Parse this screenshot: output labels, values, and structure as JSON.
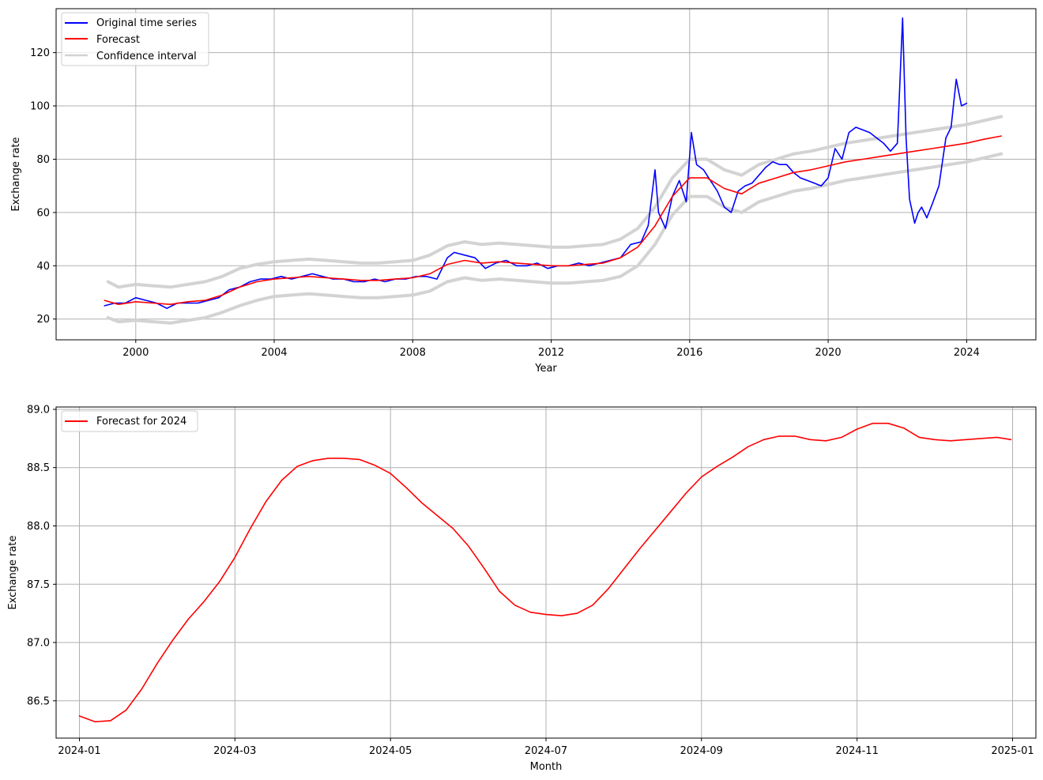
{
  "chart_data": [
    {
      "type": "line",
      "title": "",
      "xlabel": "Year",
      "ylabel": "Exchange rate",
      "xlim": [
        1997.7,
        2026.0
      ],
      "ylim": [
        12.2,
        136.5
      ],
      "x_ticks": [
        2000,
        2004,
        2008,
        2012,
        2016,
        2020,
        2024
      ],
      "x_tick_labels": [
        "2000",
        "2004",
        "2008",
        "2012",
        "2016",
        "2020",
        "2024"
      ],
      "y_ticks": [
        20,
        40,
        60,
        80,
        100,
        120
      ],
      "y_tick_labels": [
        "20",
        "40",
        "60",
        "80",
        "100",
        "120"
      ],
      "grid": true,
      "legend_position": "top-left",
      "series": [
        {
          "name": "Original time series",
          "color": "#0000ff",
          "x": [
            1999.1,
            1999.4,
            1999.7,
            2000.0,
            2000.3,
            2000.6,
            2000.9,
            2001.2,
            2001.5,
            2001.8,
            2002.1,
            2002.4,
            2002.7,
            2003.0,
            2003.3,
            2003.6,
            2003.9,
            2004.2,
            2004.5,
            2004.8,
            2005.1,
            2005.4,
            2005.7,
            2006.0,
            2006.3,
            2006.6,
            2006.9,
            2007.2,
            2007.5,
            2007.8,
            2008.1,
            2008.4,
            2008.7,
            2009.0,
            2009.2,
            2009.5,
            2009.8,
            2010.1,
            2010.4,
            2010.7,
            2011.0,
            2011.3,
            2011.6,
            2011.9,
            2012.2,
            2012.5,
            2012.8,
            2013.1,
            2013.4,
            2013.7,
            2014.0,
            2014.3,
            2014.6,
            2014.8,
            2015.0,
            2015.1,
            2015.3,
            2015.5,
            2015.7,
            2015.9,
            2016.05,
            2016.2,
            2016.4,
            2016.6,
            2016.8,
            2017.0,
            2017.2,
            2017.4,
            2017.6,
            2017.8,
            2018.0,
            2018.2,
            2018.4,
            2018.6,
            2018.8,
            2019.0,
            2019.2,
            2019.4,
            2019.6,
            2019.8,
            2020.0,
            2020.2,
            2020.4,
            2020.6,
            2020.8,
            2021.0,
            2021.2,
            2021.4,
            2021.6,
            2021.8,
            2022.0,
            2022.15,
            2022.25,
            2022.35,
            2022.5,
            2022.6,
            2022.7,
            2022.85,
            2023.0,
            2023.2,
            2023.4,
            2023.55,
            2023.7,
            2023.85,
            2024.0
          ],
          "values": [
            25,
            26,
            26,
            28,
            27,
            26,
            24,
            26,
            26,
            26,
            27,
            28,
            31,
            32,
            34,
            35,
            35,
            36,
            35,
            36,
            37,
            36,
            35,
            35,
            34,
            34,
            35,
            34,
            35,
            35,
            36,
            36,
            35,
            43,
            45,
            44,
            43,
            39,
            41,
            42,
            40,
            40,
            41,
            39,
            40,
            40,
            41,
            40,
            41,
            42,
            43,
            48,
            49,
            55,
            76,
            60,
            54,
            66,
            72,
            64,
            90,
            78,
            76,
            72,
            68,
            62,
            60,
            68,
            70,
            71,
            74,
            77,
            79,
            78,
            78,
            75,
            73,
            72,
            71,
            70,
            73,
            84,
            80,
            90,
            92,
            91,
            90,
            88,
            86,
            83,
            86,
            133,
            88,
            65,
            56,
            60,
            62,
            58,
            63,
            70,
            88,
            92,
            110,
            100,
            101
          ]
        },
        {
          "name": "Forecast",
          "color": "#ff0000",
          "x": [
            1999.1,
            1999.5,
            2000.0,
            2000.5,
            2001.0,
            2001.5,
            2002.0,
            2002.5,
            2003.0,
            2003.5,
            2004.0,
            2004.5,
            2005.0,
            2005.5,
            2006.0,
            2006.5,
            2007.0,
            2007.5,
            2008.0,
            2008.5,
            2009.0,
            2009.5,
            2010.0,
            2010.5,
            2011.0,
            2011.5,
            2012.0,
            2012.5,
            2013.0,
            2013.5,
            2014.0,
            2014.5,
            2015.0,
            2015.5,
            2016.0,
            2016.5,
            2017.0,
            2017.5,
            2018.0,
            2018.5,
            2019.0,
            2019.5,
            2020.0,
            2020.5,
            2021.0,
            2021.5,
            2022.0,
            2022.5,
            2023.0,
            2023.5,
            2024.0,
            2024.5,
            2025.0
          ],
          "values": [
            27,
            25.5,
            26.5,
            26,
            25.5,
            26.5,
            27,
            29,
            32,
            34,
            35,
            35.5,
            36,
            35.5,
            35,
            34.5,
            34.5,
            35,
            35.5,
            37,
            40.5,
            42,
            41,
            41.5,
            41,
            40.5,
            40,
            40,
            40.5,
            41,
            43,
            47,
            55,
            66,
            73,
            73,
            69,
            67,
            71,
            73,
            75,
            76,
            77.5,
            79,
            80,
            81,
            82,
            83,
            84,
            85,
            86,
            87.5,
            88.7
          ]
        },
        {
          "name": "Confidence interval",
          "color": "#d3d3d3",
          "x": [
            1999.2,
            1999.5,
            2000.0,
            2000.5,
            2001.0,
            2001.5,
            2002.0,
            2002.5,
            2003.0,
            2003.5,
            2004.0,
            2004.5,
            2005.0,
            2005.5,
            2006.0,
            2006.5,
            2007.0,
            2007.5,
            2008.0,
            2008.5,
            2009.0,
            2009.5,
            2010.0,
            2010.5,
            2011.0,
            2011.5,
            2012.0,
            2012.5,
            2013.0,
            2013.5,
            2014.0,
            2014.5,
            2015.0,
            2015.5,
            2016.0,
            2016.5,
            2017.0,
            2017.5,
            2018.0,
            2018.5,
            2019.0,
            2019.5,
            2020.0,
            2020.5,
            2021.0,
            2021.5,
            2022.0,
            2022.5,
            2023.0,
            2023.5,
            2024.0,
            2024.5,
            2025.0
          ],
          "values": [
            34,
            32,
            33,
            32.5,
            32,
            33,
            34,
            36,
            39,
            40.5,
            41.5,
            42,
            42.5,
            42,
            41.5,
            41,
            41,
            41.5,
            42,
            44,
            47.5,
            49,
            48,
            48.5,
            48,
            47.5,
            47,
            47,
            47.5,
            48,
            50,
            54,
            62,
            73,
            80,
            80,
            76,
            74,
            78,
            80,
            82,
            83,
            84.5,
            86,
            87,
            88,
            89,
            90,
            91,
            92,
            93,
            94.5,
            96
          ]
        },
        {
          "name": "",
          "color": "#d3d3d3",
          "x": [
            1999.2,
            1999.5,
            2000.0,
            2000.5,
            2001.0,
            2001.5,
            2002.0,
            2002.5,
            2003.0,
            2003.5,
            2004.0,
            2004.5,
            2005.0,
            2005.5,
            2006.0,
            2006.5,
            2007.0,
            2007.5,
            2008.0,
            2008.5,
            2009.0,
            2009.5,
            2010.0,
            2010.5,
            2011.0,
            2011.5,
            2012.0,
            2012.5,
            2013.0,
            2013.5,
            2014.0,
            2014.5,
            2015.0,
            2015.5,
            2016.0,
            2016.5,
            2017.0,
            2017.5,
            2018.0,
            2018.5,
            2019.0,
            2019.5,
            2020.0,
            2020.5,
            2021.0,
            2021.5,
            2022.0,
            2022.5,
            2023.0,
            2023.5,
            2024.0,
            2024.5,
            2025.0
          ],
          "values": [
            20.5,
            19,
            19.5,
            19,
            18.5,
            19.5,
            20.5,
            22.5,
            25,
            27,
            28.5,
            29,
            29.5,
            29,
            28.5,
            28,
            28,
            28.5,
            29,
            30.5,
            34,
            35.5,
            34.5,
            35,
            34.5,
            34,
            33.5,
            33.5,
            34,
            34.5,
            36,
            40,
            48,
            59,
            66,
            66,
            62,
            60,
            64,
            66,
            68,
            69,
            70.5,
            72,
            73,
            74,
            75,
            76,
            77,
            78,
            79,
            80.5,
            82
          ]
        }
      ]
    },
    {
      "type": "line",
      "title": "",
      "xlabel": "Month",
      "ylabel": "Exchange rate",
      "xlim": [
        -0.3,
        12.3
      ],
      "ylim": [
        86.18,
        89.02
      ],
      "x_ticks": [
        0,
        2,
        4,
        6,
        8,
        10,
        12
      ],
      "x_tick_labels": [
        "2024-01",
        "2024-03",
        "2024-05",
        "2024-07",
        "2024-09",
        "2024-11",
        "2025-01"
      ],
      "y_ticks": [
        86.5,
        87.0,
        87.5,
        88.0,
        88.5,
        89.0
      ],
      "y_tick_labels": [
        "86.5",
        "87.0",
        "87.5",
        "88.0",
        "88.5",
        "89.0"
      ],
      "grid": true,
      "legend_position": "top-left",
      "series": [
        {
          "name": "Forecast for 2024",
          "color": "#ff0000",
          "x": [
            0.0,
            0.2,
            0.4,
            0.6,
            0.8,
            1.0,
            1.2,
            1.4,
            1.6,
            1.8,
            2.0,
            2.2,
            2.4,
            2.6,
            2.8,
            3.0,
            3.2,
            3.4,
            3.6,
            3.8,
            4.0,
            4.2,
            4.4,
            4.6,
            4.8,
            5.0,
            5.2,
            5.4,
            5.6,
            5.8,
            6.0,
            6.2,
            6.4,
            6.6,
            6.8,
            7.0,
            7.2,
            7.4,
            7.6,
            7.8,
            8.0,
            8.2,
            8.4,
            8.6,
            8.8,
            9.0,
            9.2,
            9.4,
            9.6,
            9.8,
            10.0,
            10.2,
            10.4,
            10.6,
            10.8,
            11.0,
            11.2,
            11.4,
            11.6,
            11.8,
            11.98
          ],
          "values": [
            86.37,
            86.32,
            86.33,
            86.42,
            86.6,
            86.82,
            87.02,
            87.2,
            87.35,
            87.52,
            87.73,
            87.98,
            88.21,
            88.39,
            88.51,
            88.56,
            88.58,
            88.58,
            88.57,
            88.52,
            88.45,
            88.33,
            88.2,
            88.09,
            87.98,
            87.83,
            87.64,
            87.44,
            87.32,
            87.26,
            87.24,
            87.23,
            87.25,
            87.32,
            87.46,
            87.63,
            87.8,
            87.96,
            88.12,
            88.28,
            88.42,
            88.51,
            88.59,
            88.68,
            88.74,
            88.77,
            88.77,
            88.74,
            88.73,
            88.76,
            88.83,
            88.88,
            88.88,
            88.84,
            88.76,
            88.74,
            88.73,
            88.74,
            88.75,
            88.76,
            88.74
          ]
        }
      ]
    }
  ]
}
